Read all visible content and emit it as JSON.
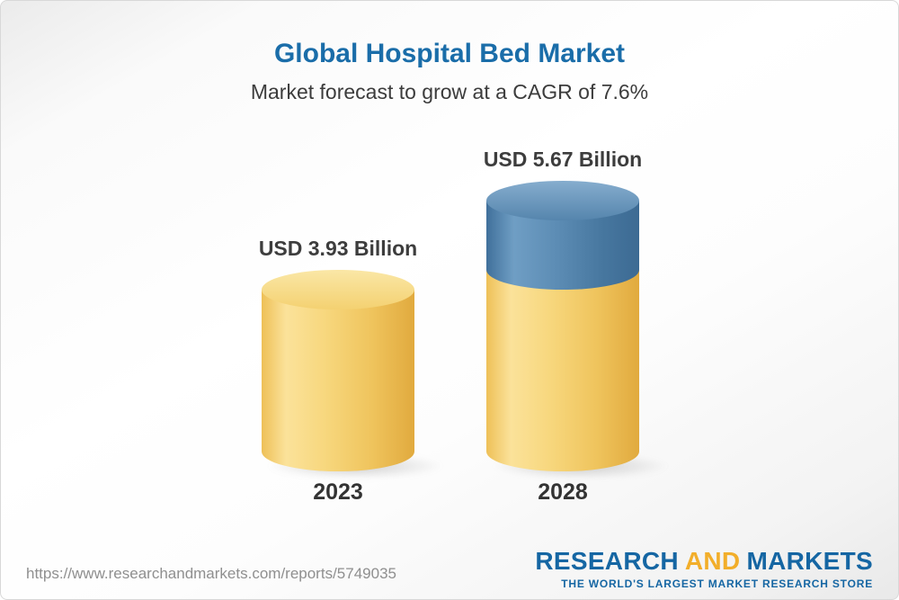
{
  "chart_data": {
    "type": "bar",
    "style": "3d-cylinder",
    "orientation": "vertical",
    "title": "Global Hospital Bed Market",
    "subtitle": "Market forecast to grow at a CAGR of 7.6%",
    "categories": [
      "2023",
      "2028"
    ],
    "values": [
      3.93,
      5.67
    ],
    "unit": "USD Billion",
    "value_labels": [
      "USD 3.93 Billion",
      "USD 5.67 Billion"
    ],
    "cagr_percent": 7.6,
    "colors": {
      "base_bar": "#f5d378",
      "growth_segment": "#5d8db5",
      "title_text": "#1a6da9",
      "label_text": "#3d3d3d"
    },
    "legend": "none",
    "grid": false
  },
  "footer": {
    "report_url": "https://www.researchandmarkets.com/reports/5749035",
    "logo": {
      "research": "RESEARCH",
      "and": "AND",
      "markets": "MARKETS",
      "tagline": "THE WORLD'S LARGEST MARKET RESEARCH STORE"
    }
  }
}
